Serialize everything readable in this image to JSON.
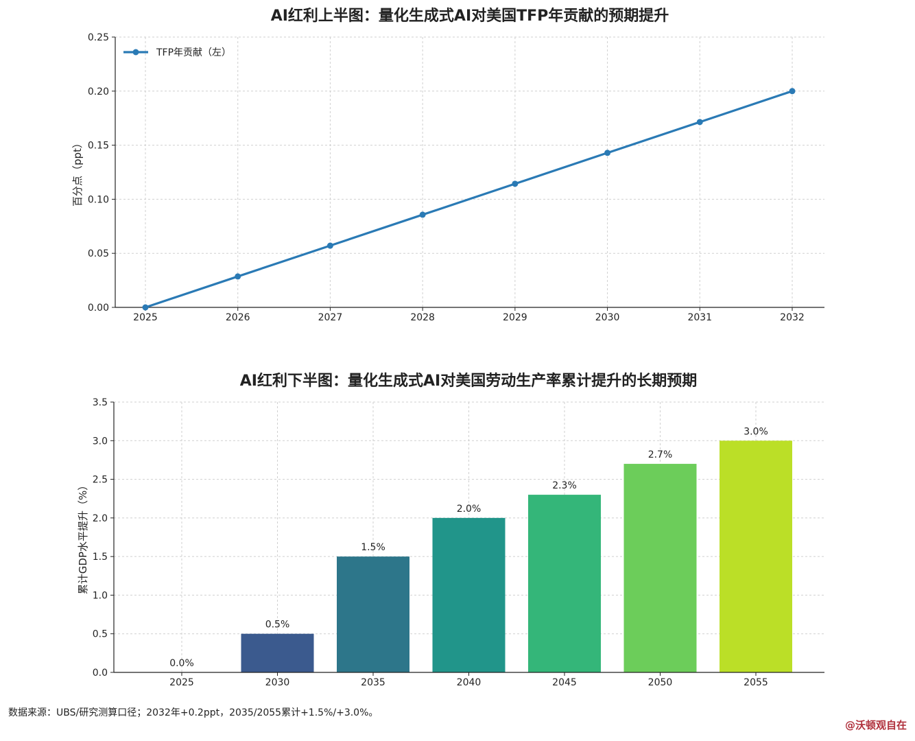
{
  "chart_data": [
    {
      "type": "line",
      "title": "AI红利上半图：量化生成式AI对美国TFP年贡献的预期提升",
      "xlabel": "",
      "ylabel": "百分点（ppt）",
      "x": [
        2025,
        2026,
        2027,
        2028,
        2029,
        2030,
        2031,
        2032
      ],
      "series": [
        {
          "name": "TFP年贡献（左）",
          "values": [
            0.0,
            0.0286,
            0.0571,
            0.0857,
            0.1143,
            0.1429,
            0.1714,
            0.2
          ],
          "color": "#2a7ab5"
        }
      ],
      "ylim": [
        0,
        0.25
      ],
      "yticks": [
        "0.00",
        "0.05",
        "0.10",
        "0.15",
        "0.20",
        "0.25"
      ],
      "xticks": [
        "2025",
        "2026",
        "2027",
        "2028",
        "2029",
        "2030",
        "2031",
        "2032"
      ],
      "grid": true,
      "legend": "top-left"
    },
    {
      "type": "bar",
      "title": "AI红利下半图：量化生成式AI对美国劳动生产率累计提升的长期预期",
      "xlabel": "",
      "ylabel": "累计GDP水平提升（%）",
      "categories": [
        "2025",
        "2030",
        "2035",
        "2040",
        "2045",
        "2050",
        "2055"
      ],
      "values": [
        0.0,
        0.5,
        1.5,
        2.0,
        2.3,
        2.7,
        3.0
      ],
      "data_labels": [
        "0.0%",
        "0.5%",
        "1.5%",
        "2.0%",
        "2.3%",
        "2.7%",
        "3.0%"
      ],
      "colors": [
        "#45307a",
        "#3b5a8e",
        "#2d768a",
        "#21958a",
        "#34b679",
        "#6ccd5a",
        "#bbdf27"
      ],
      "ylim": [
        0,
        3.5
      ],
      "yticks": [
        "0.0",
        "0.5",
        "1.0",
        "1.5",
        "2.0",
        "2.5",
        "3.0",
        "3.5"
      ],
      "grid": true
    }
  ],
  "footer": {
    "source": "数据来源：UBS/研究测算口径；2032年+0.2ppt，2035/2055累计+1.5%/+3.0%。",
    "watermark": "@沃顿观自在"
  }
}
